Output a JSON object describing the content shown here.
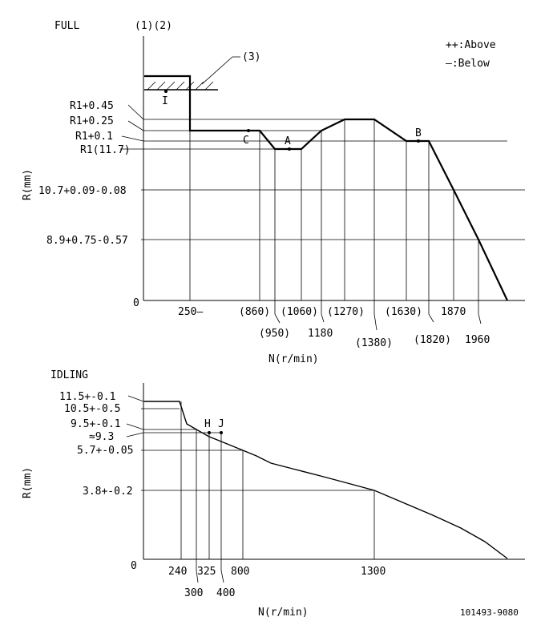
{
  "legend": {
    "above": "++:Above",
    "below": "—:Below"
  },
  "full": {
    "title": "FULL",
    "col_header": "(1)(2)",
    "stop_label": "(3)",
    "y_axis_label": "R(mm)",
    "x_axis_label": "N(r/min)",
    "origin": "0",
    "y_labels": [
      "R1+0.45",
      "R1+0.25",
      "R1+0.1",
      "R1(11.7)",
      "10.7+0.09-0.08",
      "8.9+0.75-0.57"
    ],
    "x_labels_upper": [
      "250—",
      "(860)",
      "(1060)",
      "(1270)",
      "(1630)",
      "1870"
    ],
    "x_labels_lower": [
      "(950)",
      "1180",
      "(1380)",
      "(1820)",
      "1960"
    ],
    "points": {
      "I": "I",
      "C": "C",
      "A": "A",
      "B": "B"
    }
  },
  "idling": {
    "title": "IDLING",
    "y_axis_label": "R(mm)",
    "x_axis_label": "N(r/min)",
    "origin": "0",
    "y_labels": [
      "11.5+-0.1",
      "10.5+-0.5",
      "9.5+-0.1",
      "≈9.3",
      "5.7+-0.05",
      "3.8+-0.2"
    ],
    "x_labels_upper": [
      "240",
      "325",
      "800",
      "1300"
    ],
    "x_labels_lower": [
      "300",
      "400"
    ],
    "points": {
      "H": "H",
      "J": "J"
    }
  },
  "doc_number": "101493-9080"
}
